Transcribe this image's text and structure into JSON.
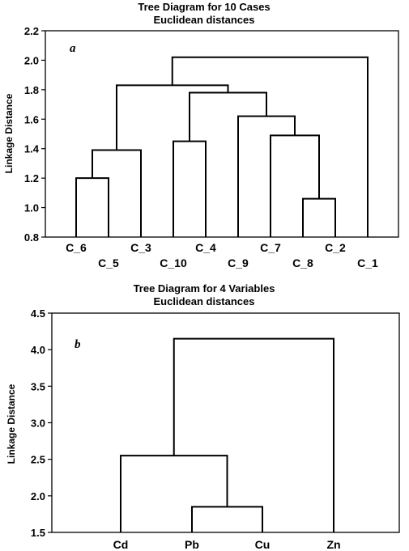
{
  "chart_data": [
    {
      "type": "dendrogram",
      "panel_label": "a",
      "title": "Tree Diagram for 10 Cases",
      "subtitle": "Euclidean distances",
      "ylabel": "Linkage Distance",
      "xlabel": "",
      "ylim": [
        0.8,
        2.2
      ],
      "yticks": [
        "0.8",
        "1.0",
        "1.2",
        "1.4",
        "1.6",
        "1.8",
        "2.0",
        "2.2"
      ],
      "leaves": [
        "C_6",
        "C_5",
        "C_3",
        "C_10",
        "C_4",
        "C_9",
        "C_7",
        "C_8",
        "C_2",
        "C_1"
      ],
      "merges": [
        {
          "left": "C_6",
          "right": "C_5",
          "height": 1.2
        },
        {
          "left": "C_8",
          "right": "C_2",
          "height": 1.06
        },
        {
          "left": "C_10",
          "right": "C_4",
          "height": 1.45
        },
        {
          "left": "{C_6,C_5}",
          "right": "C_3",
          "height": 1.39
        },
        {
          "left": "C_7",
          "right": "{C_8,C_2}",
          "height": 1.49
        },
        {
          "left": "C_9",
          "right": "{C_7,C_8,C_2}",
          "height": 1.62
        },
        {
          "left": "{C_10,C_4}",
          "right": "{C_9,C_7,C_8,C_2}",
          "height": 1.78
        },
        {
          "left": "{C_6,C_5,C_3}",
          "right": "{C_10,C_4,C_9,C_7,C_8,C_2}",
          "height": 1.83
        },
        {
          "left": "{C_6,...,C_2}",
          "right": "C_1",
          "height": 2.02
        }
      ]
    },
    {
      "type": "dendrogram",
      "panel_label": "b",
      "title": "Tree Diagram for 4 Variables",
      "subtitle": "Euclidean distances",
      "ylabel": "Linkage Distance",
      "xlabel": "",
      "ylim": [
        1.5,
        4.5
      ],
      "yticks": [
        "1.5",
        "2.0",
        "2.5",
        "3.0",
        "3.5",
        "4.0",
        "4.5"
      ],
      "leaves": [
        "Cd",
        "Pb",
        "Cu",
        "Zn"
      ],
      "merges": [
        {
          "left": "Pb",
          "right": "Cu",
          "height": 1.85
        },
        {
          "left": "Cd",
          "right": "{Pb,Cu}",
          "height": 2.55
        },
        {
          "left": "{Cd,Pb,Cu}",
          "right": "Zn",
          "height": 4.15
        }
      ]
    }
  ]
}
